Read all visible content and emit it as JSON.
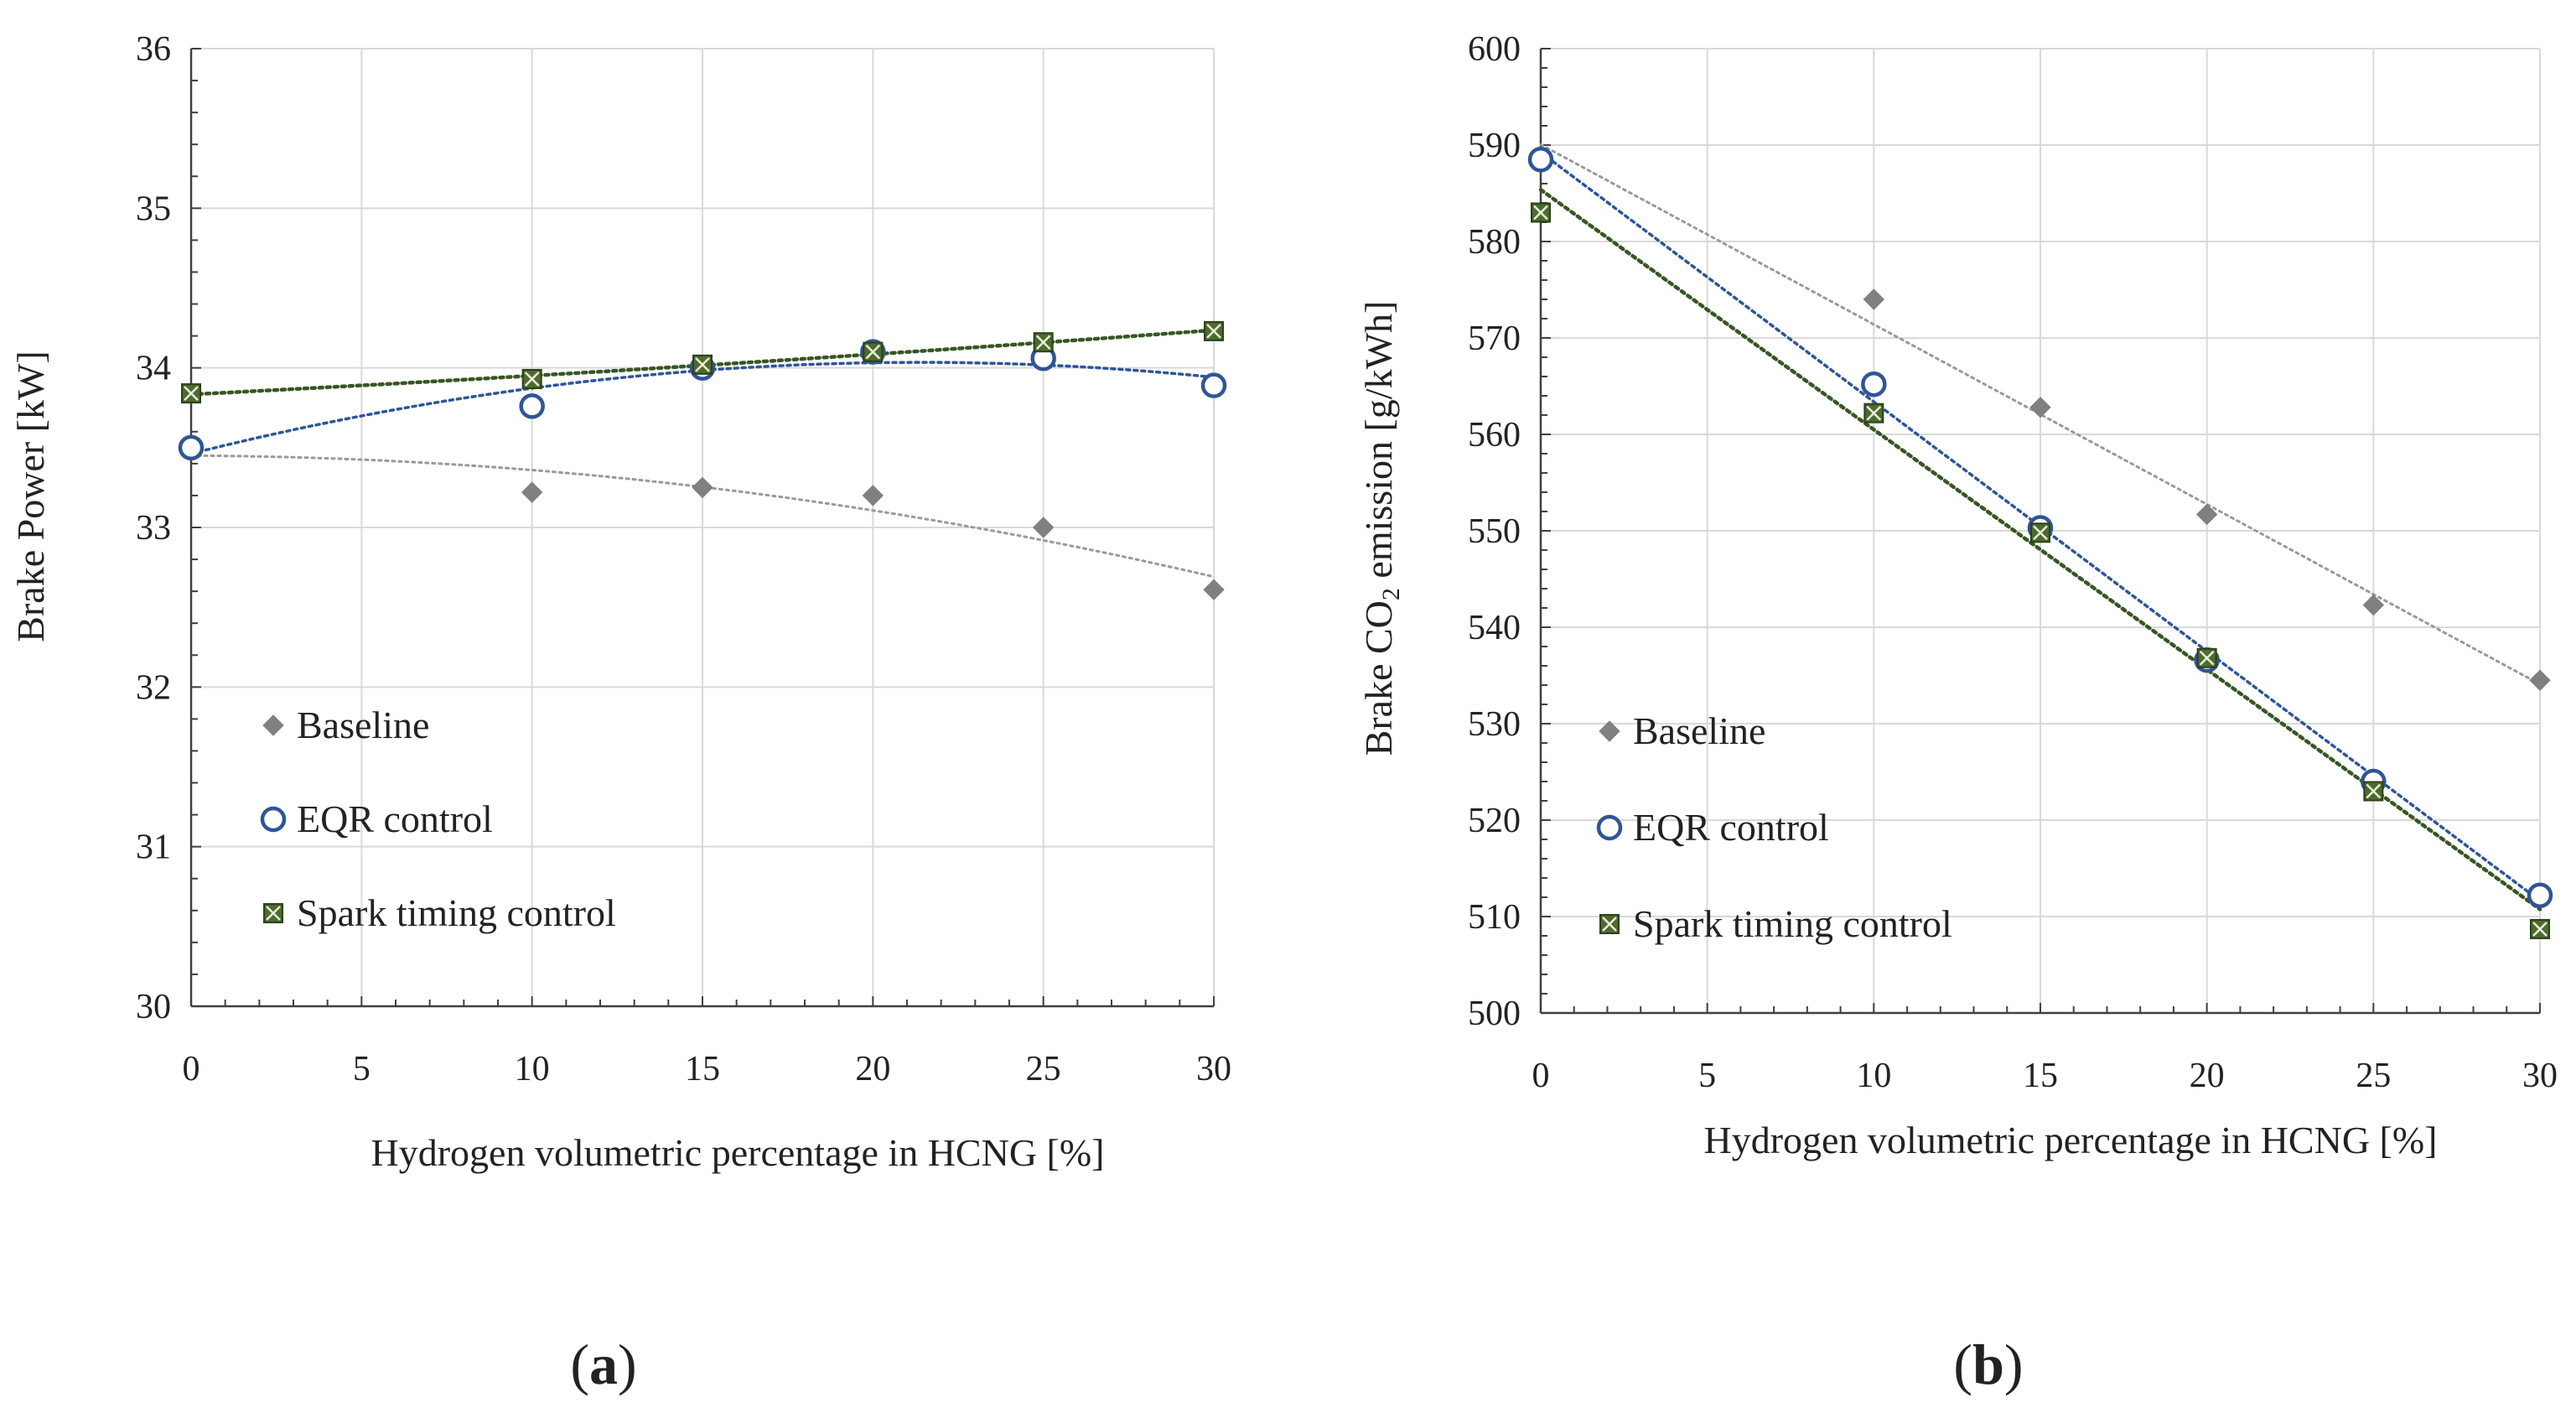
{
  "figure": {
    "panels": [
      {
        "label_paren_open": "(",
        "label_letter": "a",
        "label_paren_close": ")"
      },
      {
        "label_paren_open": "(",
        "label_letter": "b",
        "label_paren_close": ")"
      }
    ]
  },
  "colors": {
    "baseline": "#808080",
    "baseline_trend": "#999999",
    "eqr": "#2f5597",
    "spark": "#4e6b2e",
    "spark_dark": "#2e3f1a",
    "spark_trend": "#375623"
  },
  "chart_data": [
    {
      "type": "scatter",
      "panel": "a",
      "title": "",
      "xlabel": "Hydrogen volumetric percentage in HCNG [%]",
      "ylabel": "Brake Power [kW]",
      "ylabel_sub": "",
      "ylabel_rest": "",
      "xlim": [
        0,
        30
      ],
      "ylim": [
        30,
        36
      ],
      "xticks": [
        0,
        5,
        10,
        15,
        20,
        25,
        30
      ],
      "yticks": [
        30,
        31,
        32,
        33,
        34,
        35,
        36
      ],
      "grid": true,
      "legend_placement": "lower-left",
      "series": [
        {
          "name": "Baseline",
          "marker": "diamond",
          "x": [
            0,
            10,
            15,
            20,
            25,
            30
          ],
          "y": [
            33.5,
            33.22,
            33.25,
            33.2,
            33.0,
            32.61
          ],
          "trendline": "quadratic"
        },
        {
          "name": "EQR control",
          "marker": "circle",
          "x": [
            0,
            10,
            15,
            20,
            25,
            30
          ],
          "y": [
            33.5,
            33.76,
            34.0,
            34.1,
            34.06,
            33.89
          ],
          "trendline": "quadratic"
        },
        {
          "name": "Spark timing control",
          "marker": "square-x",
          "x": [
            0,
            10,
            15,
            20,
            25,
            30
          ],
          "y": [
            33.84,
            33.93,
            34.02,
            34.1,
            34.16,
            34.23
          ],
          "trendline": "quadratic"
        }
      ]
    },
    {
      "type": "scatter",
      "panel": "b",
      "title": "",
      "xlabel": "Hydrogen volumetric percentage in HCNG [%]",
      "ylabel": "Brake CO",
      "ylabel_sub": "2",
      "ylabel_rest": " emission [g/kWh]",
      "xlim": [
        0,
        30
      ],
      "ylim": [
        500,
        600
      ],
      "xticks": [
        0,
        5,
        10,
        15,
        20,
        25,
        30
      ],
      "yticks": [
        500,
        510,
        520,
        530,
        540,
        550,
        560,
        570,
        580,
        590,
        600
      ],
      "grid": true,
      "legend_placement": "lower-left",
      "series": [
        {
          "name": "Baseline",
          "marker": "diamond",
          "x": [
            0,
            10,
            15,
            20,
            25,
            30
          ],
          "y": [
            588.5,
            574.0,
            562.8,
            551.7,
            542.3,
            534.5
          ],
          "trendline": "linear"
        },
        {
          "name": "EQR control",
          "marker": "circle",
          "x": [
            0,
            10,
            15,
            20,
            25,
            30
          ],
          "y": [
            588.5,
            565.2,
            550.3,
            536.6,
            524.0,
            512.2
          ],
          "trendline": "linear"
        },
        {
          "name": "Spark timing control",
          "marker": "square-x",
          "x": [
            0,
            10,
            15,
            20,
            25,
            30
          ],
          "y": [
            583.0,
            562.2,
            549.8,
            536.8,
            523.0,
            508.7
          ],
          "trendline": "linear"
        }
      ]
    }
  ]
}
